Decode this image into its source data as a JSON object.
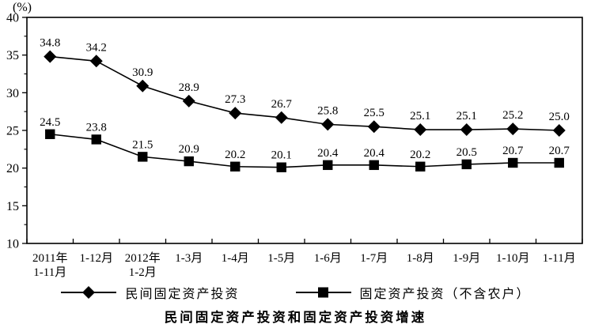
{
  "chart_data": {
    "type": "line",
    "title": "民间固定资产投资和固定资产投资增速",
    "ylabel": "(%)",
    "xlabel": "",
    "ylim": [
      10,
      40
    ],
    "y_major_ticks": [
      10,
      15,
      20,
      25,
      30,
      35,
      40
    ],
    "y_minor_ticks": [
      12.5,
      17.5,
      22.5,
      27.5,
      32.5,
      37.5
    ],
    "grid": false,
    "legend_position": "bottom",
    "categories": [
      [
        "2011年",
        "1-11月"
      ],
      [
        "1-12月"
      ],
      [
        "2012年",
        "1-2月"
      ],
      [
        "1-3月"
      ],
      [
        "1-4月"
      ],
      [
        "1-5月"
      ],
      [
        "1-6月"
      ],
      [
        "1-7月"
      ],
      [
        "1-8月"
      ],
      [
        "1-9月"
      ],
      [
        "1-10月"
      ],
      [
        "1-11月"
      ]
    ],
    "series": [
      {
        "name": "民间固定资产投资",
        "marker": "diamond",
        "values": [
          34.8,
          34.2,
          30.9,
          28.9,
          27.3,
          26.7,
          25.8,
          25.5,
          25.1,
          25.1,
          25.2,
          25.0
        ]
      },
      {
        "name": "固定资产投资（不含农户）",
        "marker": "square",
        "values": [
          24.5,
          23.8,
          21.5,
          20.9,
          20.2,
          20.1,
          20.4,
          20.4,
          20.2,
          20.5,
          20.7,
          20.7
        ]
      }
    ],
    "colors": {
      "line": "#000000",
      "marker": "#000000",
      "text": "#000000",
      "background": "#ffffff"
    }
  }
}
